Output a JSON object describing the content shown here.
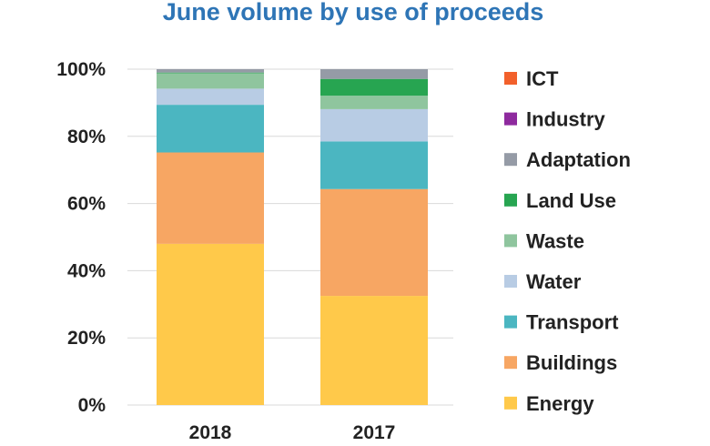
{
  "chart_data": {
    "type": "bar",
    "stacked": true,
    "percent": true,
    "title": "June volume by use of proceeds",
    "title_color": "#2E75B6",
    "categories": [
      "2018",
      "2017"
    ],
    "ylim": [
      0,
      100
    ],
    "yticks": [
      0,
      20,
      40,
      60,
      80,
      100
    ],
    "ytick_labels": [
      "0%",
      "20%",
      "40%",
      "60%",
      "80%",
      "100%"
    ],
    "grid": true,
    "legend_position": "right",
    "series": [
      {
        "name": "Energy",
        "color": "#FFC94A",
        "values": [
          48,
          32.5
        ]
      },
      {
        "name": "Buildings",
        "color": "#F7A663",
        "values": [
          27.2,
          31.8
        ]
      },
      {
        "name": "Transport",
        "color": "#4BB6C1",
        "values": [
          14.2,
          14.2
        ]
      },
      {
        "name": "Water",
        "color": "#B8CCE4",
        "values": [
          4.8,
          9.6
        ]
      },
      {
        "name": "Waste",
        "color": "#8FC59E",
        "values": [
          4.6,
          4.0
        ]
      },
      {
        "name": "Land Use",
        "color": "#27A551",
        "values": [
          0.2,
          5.0
        ]
      },
      {
        "name": "Adaptation",
        "color": "#959BA6",
        "values": [
          1.0,
          2.9
        ]
      },
      {
        "name": "Industry",
        "color": "#8E2A9E",
        "values": [
          0,
          0
        ]
      },
      {
        "name": "ICT",
        "color": "#F2602B",
        "values": [
          0,
          0
        ]
      }
    ]
  }
}
